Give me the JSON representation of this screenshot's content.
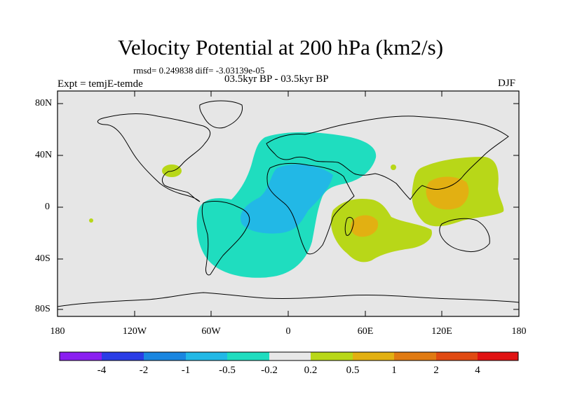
{
  "title": "Velocity Potential at 200 hPa (km2/s)",
  "stats_line": "rmsd= 0.249838 diff= -3.03139e-05",
  "experiment": "Expt = temjE-temde",
  "period": "03.5kyr BP - 03.5kyr BP",
  "season": "DJF",
  "map": {
    "projection": "cylindrical-equidistant",
    "lon_range": [
      -180,
      180
    ],
    "lat_range": [
      -90,
      90
    ],
    "lon_ticks": [
      "180",
      "120W",
      "60W",
      "0",
      "60E",
      "120E",
      "180"
    ],
    "lat_ticks": [
      "80N",
      "40N",
      "0",
      "40S",
      "80S"
    ],
    "background_color": "#e6e6e6"
  },
  "colorbar": {
    "labels": [
      "-4",
      "-2",
      "-1",
      "-0.5",
      "-0.2",
      "0.2",
      "0.5",
      "1",
      "2",
      "4"
    ],
    "colors": [
      "#8a1ff0",
      "#2a3de6",
      "#1a86e0",
      "#22b8e6",
      "#1fddbf",
      "#e8e8e8",
      "#b8d718",
      "#e2b012",
      "#e07a12",
      "#e04a12",
      "#e01212"
    ]
  },
  "anomalies": [
    {
      "label": "Atlantic / Europe negative lobe",
      "level": "-0.5 to -0.2",
      "color": "#1fddbf"
    },
    {
      "label": "Tropical Atlantic / Africa core",
      "level": "-1 to -0.5",
      "color": "#22b8e6"
    },
    {
      "label": "Western Pacific / Maritime Continent",
      "level": "0.2 to 0.5",
      "color": "#b8d718"
    },
    {
      "label": "Maritime Continent core",
      "level": "0.5 to 1",
      "color": "#e2b012"
    },
    {
      "label": "Southwest Indian Ocean",
      "level": "0.2 to 0.5",
      "color": "#b8d718"
    },
    {
      "label": "Madagascar core",
      "level": "0.5 to 1",
      "color": "#e2b012"
    },
    {
      "label": "Gulf of Mexico",
      "level": "0.2 to 0.5",
      "color": "#b8d718"
    }
  ]
}
